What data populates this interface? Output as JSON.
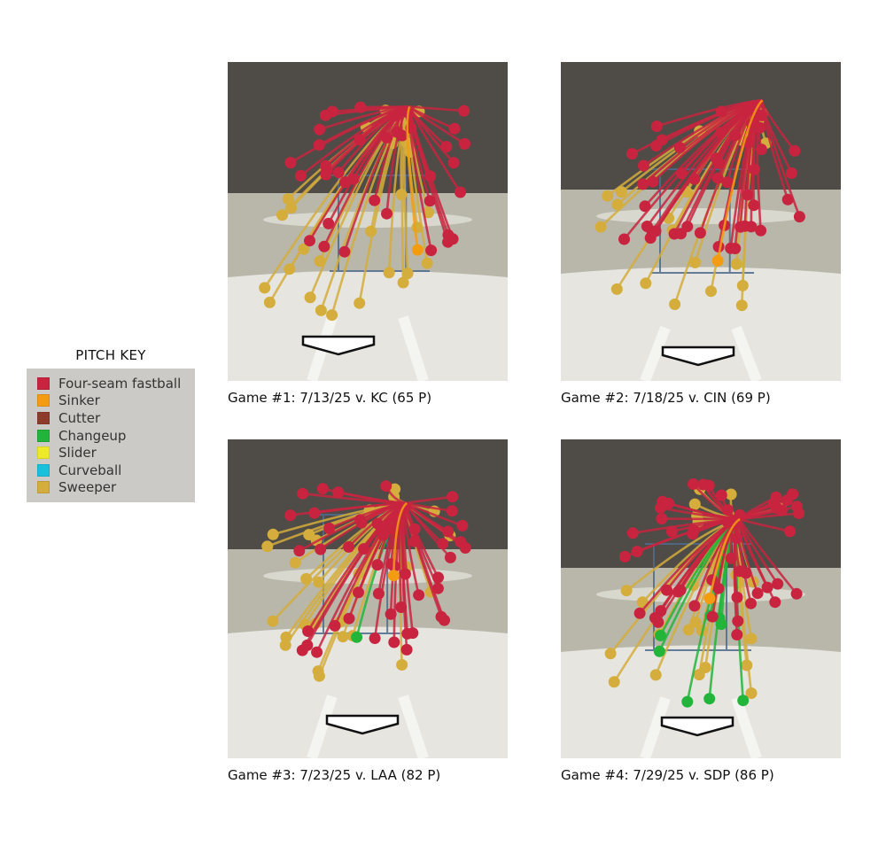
{
  "legend": {
    "title": "PITCH KEY",
    "items": [
      {
        "label": "Four-seam fastball",
        "color": "#c8243f"
      },
      {
        "label": "Sinker",
        "color": "#f39c12"
      },
      {
        "label": "Cutter",
        "color": "#8e3b2b"
      },
      {
        "label": "Changeup",
        "color": "#22b53a"
      },
      {
        "label": "Slider",
        "color": "#eeea2a"
      },
      {
        "label": "Curveball",
        "color": "#19c0dc"
      },
      {
        "label": "Sweeper",
        "color": "#d4ad3c"
      }
    ]
  },
  "chart_data": [
    {
      "type": "scatter",
      "title": "Game #1: 7/13/25 v. KC (65 P)",
      "counts": {
        "Four-seam fastball": 38,
        "Sweeper": 26,
        "Sinker": 1
      },
      "release_point": [
        0.65,
        0.14
      ]
    },
    {
      "type": "scatter",
      "title": "Game #2: 7/18/25 v. CIN (69 P)",
      "counts": {
        "Four-seam fastball": 47,
        "Sweeper": 21,
        "Sinker": 1
      },
      "release_point": [
        0.72,
        0.12
      ]
    },
    {
      "type": "scatter",
      "title": "Game #3: 7/23/25 v. LAA (82 P)",
      "counts": {
        "Four-seam fastball": 53,
        "Sweeper": 27,
        "Sinker": 1,
        "Changeup": 1
      },
      "release_point": [
        0.64,
        0.2
      ]
    },
    {
      "type": "scatter",
      "title": "Game #4: 7/29/25 v. SDP (86 P)",
      "counts": {
        "Four-seam fastball": 50,
        "Sweeper": 27,
        "Sinker": 1,
        "Changeup": 8
      },
      "release_point": [
        0.64,
        0.25
      ]
    }
  ]
}
